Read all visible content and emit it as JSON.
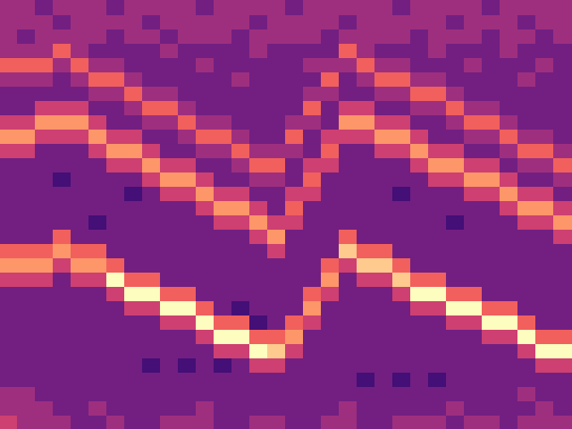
{
  "chart_data": {
    "type": "heatmap",
    "color": "magma",
    "zlim": [
      0,
      9
    ],
    "grid": false,
    "tick_labels": false,
    "cells": [
      [
        4,
        4,
        3,
        4,
        4,
        4,
        3,
        4,
        4,
        4,
        4,
        3,
        4,
        4,
        4,
        4,
        3,
        4,
        4,
        4,
        4,
        4,
        3,
        4,
        4,
        4,
        4,
        3,
        4,
        4,
        4,
        4
      ],
      [
        4,
        4,
        4,
        3,
        4,
        4,
        4,
        4,
        3,
        4,
        4,
        4,
        4,
        4,
        3,
        4,
        4,
        4,
        4,
        3,
        4,
        4,
        4,
        4,
        4,
        3,
        4,
        4,
        4,
        3,
        4,
        4
      ],
      [
        4,
        3,
        4,
        4,
        4,
        4,
        3,
        4,
        4,
        3,
        4,
        4,
        4,
        3,
        4,
        4,
        4,
        4,
        3,
        4,
        4,
        4,
        4,
        3,
        4,
        4,
        4,
        3,
        4,
        4,
        3,
        4
      ],
      [
        4,
        4,
        4,
        6,
        4,
        3,
        3,
        3,
        3,
        4,
        3,
        3,
        3,
        3,
        4,
        3,
        3,
        3,
        3,
        6,
        4,
        3,
        3,
        3,
        4,
        3,
        3,
        3,
        4,
        3,
        3,
        3
      ],
      [
        6,
        6,
        6,
        4,
        6,
        4,
        4,
        3,
        3,
        3,
        3,
        4,
        3,
        3,
        3,
        3,
        3,
        4,
        4,
        4,
        6,
        4,
        4,
        3,
        3,
        3,
        4,
        3,
        3,
        3,
        4,
        3
      ],
      [
        4,
        4,
        4,
        3,
        4,
        6,
        6,
        4,
        3,
        3,
        3,
        3,
        3,
        4,
        3,
        3,
        3,
        3,
        6,
        3,
        4,
        6,
        6,
        4,
        4,
        3,
        3,
        3,
        3,
        4,
        3,
        3
      ],
      [
        3,
        3,
        3,
        3,
        3,
        4,
        4,
        6,
        4,
        4,
        3,
        3,
        3,
        3,
        3,
        3,
        3,
        4,
        4,
        3,
        3,
        4,
        4,
        6,
        6,
        4,
        3,
        3,
        3,
        3,
        3,
        3
      ],
      [
        3,
        3,
        5,
        5,
        5,
        3,
        3,
        4,
        6,
        6,
        4,
        3,
        3,
        3,
        3,
        3,
        3,
        6,
        3,
        5,
        5,
        3,
        3,
        4,
        4,
        6,
        4,
        4,
        3,
        3,
        3,
        3
      ],
      [
        5,
        5,
        7,
        7,
        7,
        5,
        3,
        3,
        4,
        4,
        6,
        4,
        4,
        3,
        3,
        3,
        4,
        4,
        3,
        7,
        7,
        5,
        5,
        3,
        3,
        4,
        6,
        6,
        4,
        3,
        3,
        3
      ],
      [
        7,
        7,
        5,
        5,
        5,
        7,
        5,
        5,
        3,
        3,
        4,
        6,
        6,
        4,
        3,
        3,
        6,
        3,
        5,
        5,
        5,
        7,
        7,
        5,
        3,
        3,
        4,
        4,
        6,
        4,
        4,
        3
      ],
      [
        5,
        5,
        3,
        3,
        3,
        5,
        7,
        7,
        5,
        3,
        3,
        4,
        4,
        6,
        4,
        4,
        4,
        3,
        6,
        3,
        3,
        5,
        5,
        7,
        5,
        5,
        3,
        3,
        4,
        6,
        6,
        4
      ],
      [
        3,
        3,
        3,
        3,
        3,
        3,
        5,
        5,
        7,
        5,
        5,
        3,
        3,
        4,
        6,
        6,
        3,
        5,
        5,
        3,
        3,
        3,
        3,
        5,
        7,
        7,
        5,
        5,
        3,
        4,
        4,
        6
      ],
      [
        3,
        3,
        3,
        2,
        3,
        3,
        3,
        3,
        5,
        7,
        7,
        5,
        3,
        3,
        4,
        4,
        3,
        6,
        3,
        3,
        3,
        3,
        3,
        3,
        5,
        5,
        7,
        7,
        5,
        3,
        3,
        4
      ],
      [
        3,
        3,
        3,
        3,
        3,
        3,
        3,
        2,
        3,
        5,
        5,
        7,
        5,
        5,
        3,
        3,
        5,
        5,
        3,
        3,
        3,
        3,
        2,
        3,
        3,
        3,
        5,
        5,
        7,
        5,
        5,
        3
      ],
      [
        3,
        3,
        3,
        3,
        3,
        3,
        3,
        3,
        3,
        3,
        3,
        5,
        7,
        7,
        5,
        3,
        6,
        3,
        3,
        3,
        3,
        3,
        3,
        3,
        3,
        3,
        3,
        3,
        5,
        7,
        7,
        5
      ],
      [
        3,
        3,
        3,
        3,
        3,
        2,
        3,
        3,
        3,
        3,
        3,
        3,
        5,
        5,
        7,
        5,
        5,
        3,
        3,
        3,
        3,
        3,
        3,
        3,
        3,
        2,
        3,
        3,
        3,
        5,
        5,
        7
      ],
      [
        3,
        3,
        3,
        6,
        3,
        3,
        3,
        3,
        3,
        3,
        3,
        3,
        3,
        3,
        5,
        7,
        3,
        3,
        3,
        6,
        3,
        3,
        3,
        3,
        3,
        3,
        3,
        3,
        3,
        3,
        3,
        5
      ],
      [
        6,
        6,
        6,
        7,
        6,
        6,
        3,
        3,
        3,
        3,
        3,
        3,
        3,
        3,
        3,
        5,
        3,
        3,
        3,
        8,
        6,
        6,
        3,
        3,
        3,
        3,
        3,
        3,
        3,
        3,
        3,
        3
      ],
      [
        7,
        7,
        7,
        5,
        7,
        7,
        6,
        3,
        3,
        3,
        3,
        3,
        3,
        3,
        3,
        3,
        3,
        3,
        6,
        5,
        8,
        8,
        6,
        3,
        3,
        3,
        3,
        3,
        3,
        3,
        3,
        3
      ],
      [
        5,
        5,
        5,
        3,
        5,
        5,
        9,
        6,
        6,
        3,
        3,
        3,
        3,
        3,
        3,
        3,
        3,
        3,
        7,
        3,
        5,
        5,
        8,
        6,
        6,
        3,
        3,
        3,
        3,
        3,
        3,
        3
      ],
      [
        3,
        3,
        3,
        3,
        3,
        3,
        5,
        9,
        9,
        6,
        6,
        3,
        3,
        3,
        3,
        3,
        3,
        6,
        5,
        3,
        3,
        3,
        5,
        9,
        9,
        6,
        6,
        3,
        3,
        3,
        3,
        3
      ],
      [
        3,
        3,
        3,
        3,
        3,
        3,
        3,
        5,
        5,
        9,
        9,
        6,
        3,
        2,
        3,
        3,
        3,
        7,
        3,
        3,
        3,
        3,
        3,
        5,
        5,
        9,
        9,
        6,
        6,
        3,
        3,
        3
      ],
      [
        3,
        3,
        3,
        3,
        3,
        3,
        3,
        3,
        3,
        5,
        5,
        9,
        6,
        6,
        2,
        3,
        6,
        5,
        3,
        3,
        3,
        3,
        3,
        3,
        3,
        5,
        5,
        9,
        9,
        6,
        3,
        3
      ],
      [
        3,
        3,
        3,
        3,
        3,
        3,
        3,
        3,
        3,
        3,
        3,
        5,
        9,
        9,
        6,
        6,
        7,
        3,
        3,
        3,
        3,
        3,
        3,
        3,
        3,
        3,
        3,
        5,
        5,
        9,
        6,
        6
      ],
      [
        3,
        3,
        3,
        3,
        3,
        3,
        3,
        3,
        3,
        3,
        3,
        3,
        5,
        5,
        9,
        8,
        5,
        3,
        3,
        3,
        3,
        3,
        3,
        3,
        3,
        3,
        3,
        3,
        3,
        5,
        9,
        9
      ],
      [
        3,
        3,
        3,
        3,
        3,
        3,
        3,
        3,
        2,
        3,
        2,
        3,
        2,
        3,
        5,
        5,
        3,
        3,
        3,
        3,
        3,
        3,
        3,
        3,
        3,
        3,
        3,
        3,
        3,
        3,
        5,
        5
      ],
      [
        3,
        3,
        3,
        3,
        3,
        3,
        3,
        3,
        3,
        3,
        3,
        3,
        3,
        3,
        3,
        3,
        3,
        3,
        3,
        3,
        2,
        3,
        2,
        3,
        2,
        3,
        3,
        3,
        3,
        3,
        3,
        3
      ],
      [
        4,
        4,
        3,
        3,
        3,
        3,
        3,
        3,
        3,
        3,
        3,
        3,
        3,
        3,
        3,
        3,
        3,
        3,
        3,
        3,
        3,
        3,
        3,
        3,
        3,
        3,
        3,
        3,
        3,
        4,
        3,
        3
      ],
      [
        4,
        4,
        4,
        3,
        3,
        4,
        3,
        3,
        3,
        3,
        3,
        4,
        3,
        3,
        3,
        3,
        3,
        3,
        3,
        4,
        3,
        3,
        3,
        3,
        3,
        4,
        3,
        3,
        3,
        3,
        4,
        3
      ],
      [
        5,
        4,
        4,
        4,
        3,
        3,
        4,
        3,
        3,
        4,
        4,
        4,
        3,
        3,
        4,
        4,
        3,
        3,
        4,
        4,
        3,
        3,
        4,
        4,
        4,
        3,
        4,
        4,
        3,
        4,
        4,
        4
      ]
    ]
  }
}
